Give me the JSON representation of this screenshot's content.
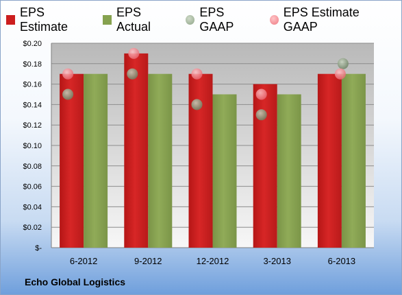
{
  "chart_data": {
    "type": "bar",
    "categories": [
      "6-2012",
      "9-2012",
      "12-2012",
      "3-2013",
      "6-2013"
    ],
    "series": [
      {
        "name": "EPS Estimate",
        "kind": "bar",
        "color": "#cc1e1e",
        "values": [
          0.17,
          0.19,
          0.17,
          0.16,
          0.17
        ]
      },
      {
        "name": "EPS Actual",
        "kind": "bar",
        "color": "#86a24f",
        "values": [
          0.17,
          0.17,
          0.15,
          0.15,
          0.17
        ]
      },
      {
        "name": "EPS GAAP",
        "kind": "marker",
        "color": "#9fb296",
        "values": [
          0.15,
          0.17,
          0.14,
          0.13,
          0.18
        ]
      },
      {
        "name": "EPS Estimate GAAP",
        "kind": "marker",
        "color": "#f08a90",
        "values": [
          0.17,
          0.19,
          0.17,
          0.15,
          0.17
        ]
      }
    ],
    "ylim": [
      0,
      0.2
    ],
    "yticks": [
      "$-",
      "$0.02",
      "$0.04",
      "$0.06",
      "$0.08",
      "$0.10",
      "$0.12",
      "$0.14",
      "$0.16",
      "$0.18",
      "$0.20"
    ],
    "grid": true,
    "legend_position": "top",
    "title": "",
    "xlabel": "",
    "ylabel": ""
  },
  "footer": {
    "company": "Echo Global Logistics"
  }
}
